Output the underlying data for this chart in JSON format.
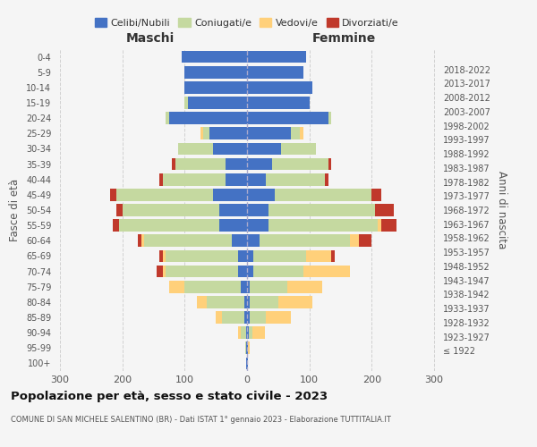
{
  "age_groups": [
    "100+",
    "95-99",
    "90-94",
    "85-89",
    "80-84",
    "75-79",
    "70-74",
    "65-69",
    "60-64",
    "55-59",
    "50-54",
    "45-49",
    "40-44",
    "35-39",
    "30-34",
    "25-29",
    "20-24",
    "15-19",
    "10-14",
    "5-9",
    "0-4"
  ],
  "birth_years": [
    "≤ 1922",
    "1923-1927",
    "1928-1932",
    "1933-1937",
    "1938-1942",
    "1943-1947",
    "1948-1952",
    "1953-1957",
    "1958-1962",
    "1963-1967",
    "1968-1972",
    "1973-1977",
    "1978-1982",
    "1983-1987",
    "1988-1992",
    "1993-1997",
    "1998-2002",
    "2003-2007",
    "2008-2012",
    "2013-2017",
    "2018-2022"
  ],
  "maschi": {
    "celibi": [
      1,
      1,
      2,
      5,
      5,
      10,
      15,
      15,
      25,
      45,
      45,
      55,
      35,
      35,
      55,
      60,
      125,
      95,
      100,
      100,
      105
    ],
    "coniugati": [
      1,
      2,
      8,
      35,
      60,
      90,
      115,
      115,
      140,
      160,
      155,
      155,
      100,
      80,
      55,
      10,
      5,
      5,
      0,
      0,
      0
    ],
    "vedovi": [
      0,
      0,
      5,
      10,
      15,
      25,
      5,
      5,
      5,
      0,
      0,
      0,
      0,
      0,
      0,
      5,
      0,
      0,
      0,
      0,
      0
    ],
    "divorziati": [
      0,
      0,
      0,
      0,
      0,
      0,
      10,
      5,
      5,
      10,
      10,
      10,
      5,
      5,
      0,
      0,
      0,
      0,
      0,
      0,
      0
    ]
  },
  "femmine": {
    "celibi": [
      1,
      1,
      3,
      5,
      5,
      5,
      10,
      10,
      20,
      35,
      35,
      45,
      30,
      40,
      55,
      70,
      130,
      100,
      105,
      90,
      95
    ],
    "coniugati": [
      0,
      1,
      5,
      25,
      45,
      60,
      80,
      85,
      145,
      175,
      170,
      155,
      95,
      90,
      55,
      15,
      5,
      0,
      0,
      0,
      0
    ],
    "vedovi": [
      1,
      2,
      20,
      40,
      55,
      55,
      75,
      40,
      15,
      5,
      0,
      0,
      0,
      0,
      0,
      5,
      0,
      0,
      0,
      0,
      0
    ],
    "divorziati": [
      0,
      0,
      0,
      0,
      0,
      0,
      0,
      5,
      20,
      25,
      30,
      15,
      5,
      5,
      0,
      0,
      0,
      0,
      0,
      0,
      0
    ]
  },
  "colors": {
    "celibi": "#4472C4",
    "coniugati": "#c5d9a0",
    "vedovi": "#ffd07a",
    "divorziati": "#c0392b"
  },
  "xlim": 310,
  "title": "Popolazione per età, sesso e stato civile - 2023",
  "subtitle": "COMUNE DI SAN MICHELE SALENTINO (BR) - Dati ISTAT 1° gennaio 2023 - Elaborazione TUTTITALIA.IT",
  "bg_color": "#f5f5f5",
  "grid_color": "#cccccc"
}
